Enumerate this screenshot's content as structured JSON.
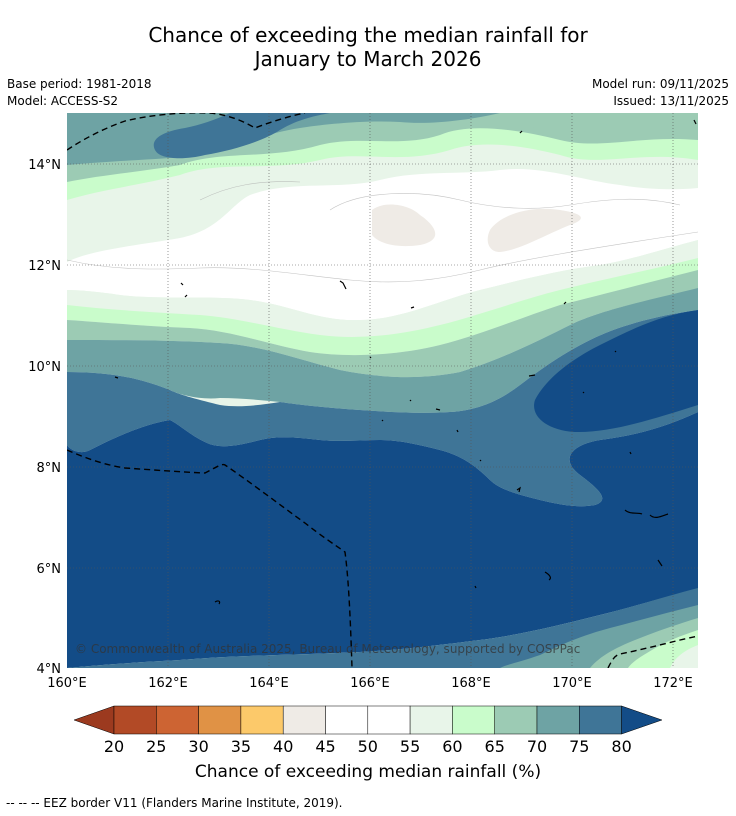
{
  "title": {
    "line1": "Chance of exceeding the median rainfall for",
    "line2": "January to March 2026"
  },
  "meta": {
    "base_period": "Base period: 1981-2018",
    "model": "Model: ACCESS-S2",
    "model_run": "Model run: 09/11/2025",
    "issued": "Issued: 13/11/2025"
  },
  "axes": {
    "x_labels": [
      "160°E",
      "162°E",
      "164°E",
      "166°E",
      "168°E",
      "170°E",
      "172°E"
    ],
    "y_labels": [
      "14°N",
      "12°N",
      "10°N",
      "8°N",
      "6°N",
      "4°N"
    ]
  },
  "copyright": "© Commonwealth of Australia 2025, Bureau of Meteorology, supported by COSPPac",
  "colorbar": {
    "ticks": [
      "20",
      "25",
      "30",
      "35",
      "40",
      "45",
      "50",
      "55",
      "60",
      "65",
      "70",
      "75",
      "80"
    ],
    "colors": {
      "lt20": "#9c3a1f",
      "20_25": "#b24a26",
      "25_30": "#cd6433",
      "30_35": "#e09245",
      "35_40": "#fcc96a",
      "40_45": "#efebe6",
      "45_50": "#ffffff",
      "50_55": "#ffffff",
      "55_60": "#e8f5e9",
      "60_65": "#c9fccb",
      "65_70": "#9ccbb4",
      "70_75": "#6ea3a4",
      "75_80": "#3f7597",
      "gt80": "#134c87"
    },
    "label": "Chance of exceeding median rainfall (%)"
  },
  "legend_note": "--  --  -- EEZ border V11 (Flanders Marine Institute, 2019)."
}
